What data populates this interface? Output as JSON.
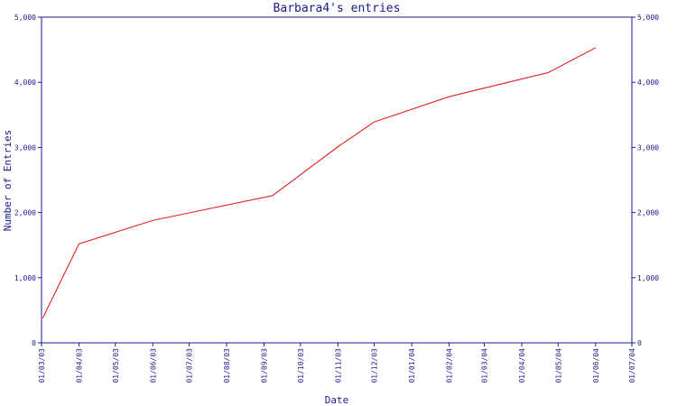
{
  "chart_data": {
    "type": "line",
    "title": "Barbara4's entries",
    "xlabel": "Date",
    "ylabel": "Number of Entries",
    "ylim": [
      0,
      5000
    ],
    "yticks": [
      0,
      1000,
      2000,
      3000,
      4000,
      5000
    ],
    "ytick_labels": [
      "0",
      "1,000",
      "2,000",
      "3,000",
      "4,000",
      "5,000"
    ],
    "xlim": [
      "2003-03-01",
      "2004-07-01"
    ],
    "xticks": [
      "2003-03-01",
      "2003-04-01",
      "2003-05-01",
      "2003-06-01",
      "2003-07-01",
      "2003-08-01",
      "2003-09-01",
      "2003-10-01",
      "2003-11-01",
      "2003-12-01",
      "2004-01-01",
      "2004-02-01",
      "2004-03-01",
      "2004-04-01",
      "2004-05-01",
      "2004-06-01",
      "2004-07-01"
    ],
    "xtick_labels": [
      "01/03/03",
      "01/04/03",
      "01/05/03",
      "01/06/03",
      "01/07/03",
      "01/08/03",
      "01/09/03",
      "01/10/03",
      "01/11/03",
      "01/12/03",
      "01/01/04",
      "01/02/04",
      "01/03/04",
      "01/04/04",
      "01/05/04",
      "01/06/04",
      "01/07/04"
    ],
    "grid": false,
    "series": [
      {
        "color": "#e01010",
        "x": [
          "2003-03-02",
          "2003-04-01",
          "2003-06-01",
          "2003-09-08",
          "2003-11-01",
          "2003-12-01",
          "2004-02-01",
          "2004-04-23",
          "2004-06-01"
        ],
        "values": [
          380,
          1520,
          1880,
          2260,
          3010,
          3390,
          3780,
          4150,
          4530
        ]
      }
    ]
  }
}
